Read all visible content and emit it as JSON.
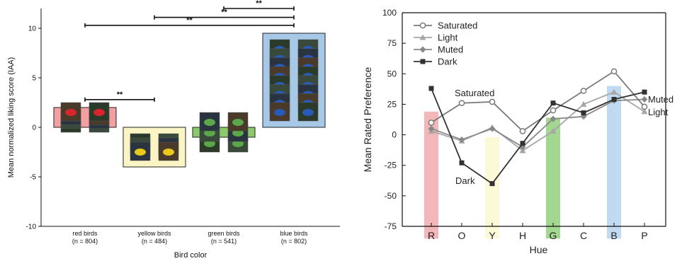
{
  "chart_data": [
    {
      "type": "bar",
      "ylabel": "Mean normalized liking score (IAA)",
      "xlabel": "Bird color",
      "ylim": [
        -10,
        12
      ],
      "yticks": [
        -10,
        -5,
        0,
        5,
        10
      ],
      "categories": [
        {
          "name": "red birds",
          "n": "(n = 804)",
          "value": 2.0,
          "color": "#f3a0a2",
          "thumbs": 8
        },
        {
          "name": "yellow birds",
          "n": "(n = 484)",
          "value": -4.0,
          "color": "#fbf5c6",
          "thumbs": 6
        },
        {
          "name": "green birds",
          "n": "(n = 541)",
          "value": -1.0,
          "color": "#8cc96a",
          "thumbs": 6
        },
        {
          "name": "blue birds",
          "n": "(n = 802)",
          "value": 9.5,
          "color": "#a8c8e8",
          "thumbs": 16
        }
      ],
      "significance": [
        {
          "from": 0,
          "to": 1,
          "y": 2.8,
          "label": "**"
        },
        {
          "from": 0,
          "to": 3,
          "y": 10.3,
          "label": "**"
        },
        {
          "from": 1,
          "to": 3,
          "y": 11.1,
          "label": "**"
        },
        {
          "from": 2,
          "to": 3,
          "y": 12.0,
          "label": "**"
        }
      ]
    },
    {
      "type": "line",
      "ylabel": "Mean Rated Preference",
      "xlabel": "Hue",
      "categories": [
        "R",
        "O",
        "Y",
        "H",
        "G",
        "C",
        "B",
        "P"
      ],
      "ylim": [
        -75,
        100
      ],
      "yticks": [
        100,
        75,
        50,
        25,
        0,
        -25,
        -50,
        -75
      ],
      "legend_position": "top-left",
      "hue_bands": [
        {
          "category": "R",
          "from": -85,
          "to": 19,
          "color": "#f1a9ad"
        },
        {
          "category": "Y",
          "from": -85,
          "to": -2,
          "color": "#fbf8cf"
        },
        {
          "category": "G",
          "from": -85,
          "to": 14,
          "color": "#93cf7a"
        },
        {
          "category": "B",
          "from": -85,
          "to": 40,
          "color": "#b4d3ee"
        }
      ],
      "series": [
        {
          "name": "Saturated",
          "marker": "circle",
          "color": "#7a7a7a",
          "values": [
            10,
            26,
            27,
            3,
            20,
            36,
            52,
            23
          ]
        },
        {
          "name": "Light",
          "marker": "triangle",
          "color": "#a6a6a6",
          "values": [
            3,
            -5,
            6,
            -13,
            3,
            25,
            35,
            19
          ]
        },
        {
          "name": "Muted",
          "marker": "diamond",
          "color": "#888888",
          "values": [
            5,
            -4,
            5,
            -10,
            13,
            15,
            28,
            29
          ]
        },
        {
          "name": "Dark",
          "marker": "square",
          "color": "#333333",
          "values": [
            38,
            -23,
            -40,
            -7,
            26,
            18,
            29,
            35
          ]
        }
      ],
      "annotations": [
        {
          "text": "Saturated"
        },
        {
          "text": "Dark"
        },
        {
          "text": "Muted"
        },
        {
          "text": "Light"
        }
      ]
    }
  ]
}
